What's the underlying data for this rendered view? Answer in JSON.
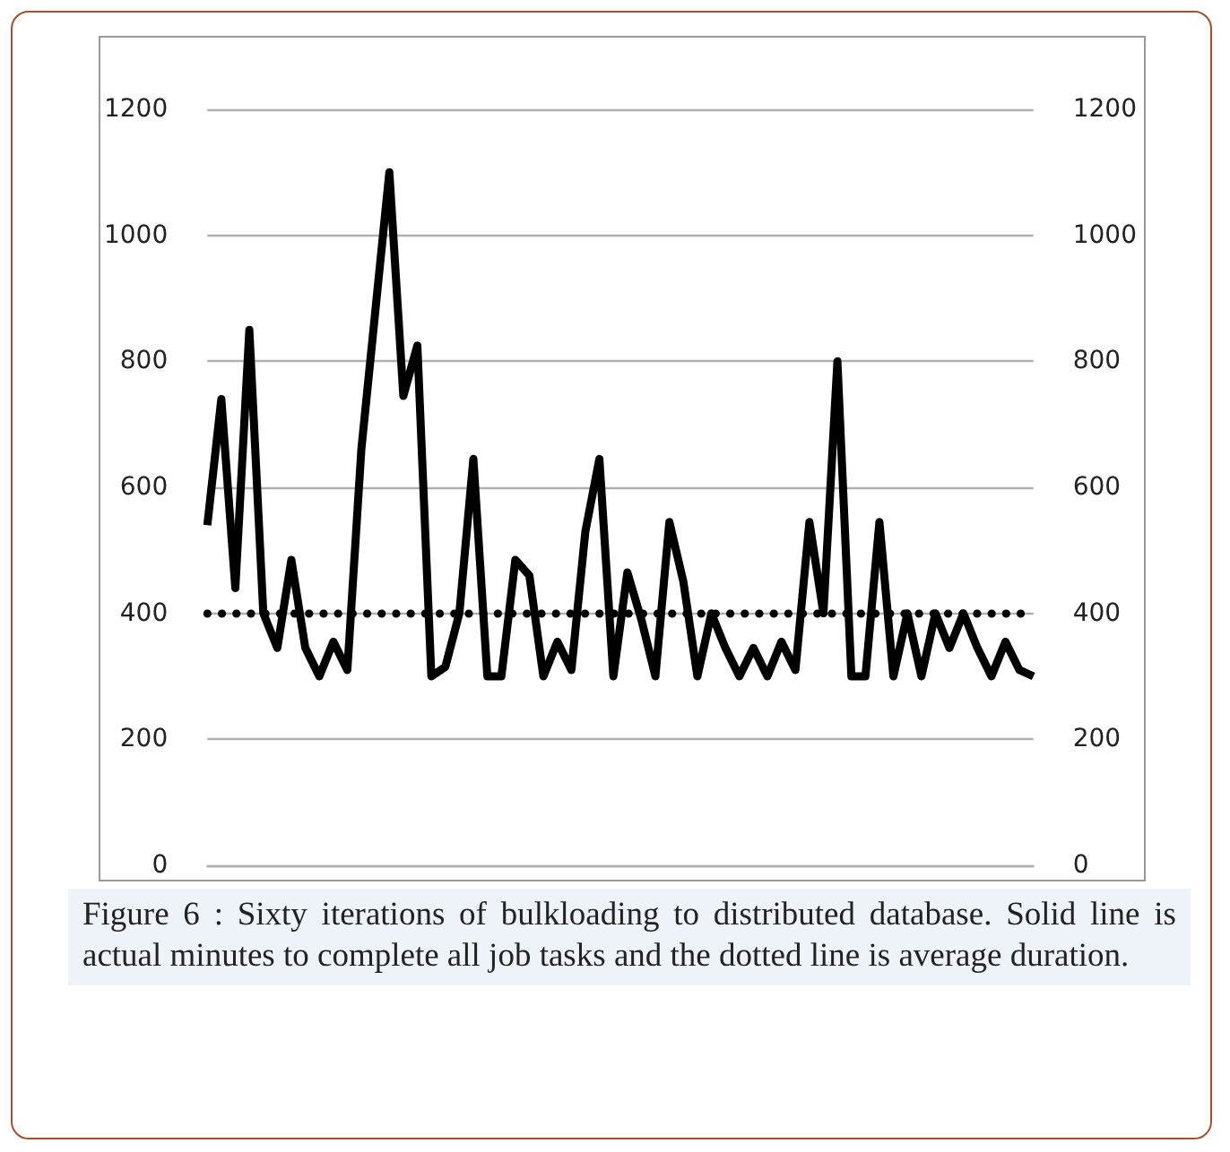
{
  "chart_data": {
    "type": "line",
    "categories": [
      null,
      null,
      null,
      null,
      null,
      null,
      null,
      null,
      null,
      null,
      null,
      null,
      null,
      null,
      null,
      null,
      null,
      null,
      null,
      null,
      null,
      null,
      null,
      null,
      null,
      null,
      null,
      null,
      null,
      null,
      null,
      null,
      null,
      null,
      null,
      null,
      null,
      null,
      null,
      null,
      null,
      null,
      null,
      null,
      null,
      null,
      null,
      null,
      null,
      null,
      null,
      null,
      null,
      null,
      null,
      null,
      null,
      null,
      null,
      null
    ],
    "series": [
      {
        "color": "#000000",
        "values": [
          540,
          740,
          440,
          850,
          400,
          345,
          485,
          345,
          300,
          355,
          310,
          660,
          880,
          1100,
          745,
          825,
          300,
          315,
          400,
          645,
          300,
          300,
          485,
          460,
          300,
          355,
          310,
          530,
          645,
          300,
          465,
          390,
          300,
          545,
          450,
          300,
          400,
          345,
          300,
          345,
          300,
          355,
          310,
          545,
          400,
          800,
          300,
          300,
          545,
          300,
          400,
          300,
          400,
          345,
          400,
          345,
          300,
          355,
          310,
          300
        ]
      }
    ],
    "ylim": [
      0,
      1200
    ],
    "yticks": [
      0,
      200,
      400,
      600,
      800,
      1000,
      1200
    ],
    "y2lim": [
      0,
      1200
    ],
    "y2ticks": [
      0,
      200,
      400,
      600,
      800,
      1000,
      1200
    ],
    "tick_labels": "y",
    "ref_lines": [
      {
        "axis": "y",
        "value": 400,
        "color": "#000000",
        "line_style": "dotted"
      }
    ],
    "grid": "y",
    "line_style": "solid",
    "annotations": [
      "Figure 6 : Sixty iterations of bulkloading to distributed database. Solid line is actual minutes to complete all job tasks and the dotted line is average duration."
    ]
  }
}
